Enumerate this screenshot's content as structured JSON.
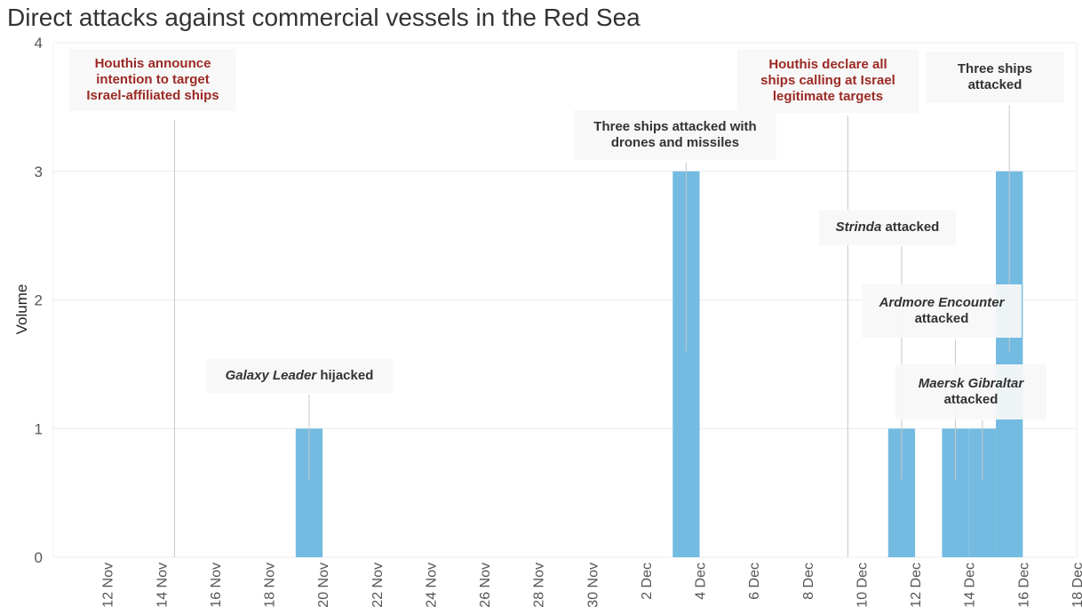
{
  "chart_data": {
    "type": "bar",
    "title": "Direct attacks against commercial vessels in the Red Sea",
    "ylabel": "Volume",
    "xlabel": "",
    "ylim": [
      0,
      4
    ],
    "yticks": [
      0,
      1,
      2,
      3,
      4
    ],
    "xlim": [
      "2023-11-10",
      "2023-12-18"
    ],
    "x_tick_labels": [
      "12 Nov",
      "14 Nov",
      "16 Nov",
      "18 Nov",
      "20 Nov",
      "22 Nov",
      "24 Nov",
      "26 Nov",
      "28 Nov",
      "30 Nov",
      "2 Dec",
      "4 Dec",
      "6 Dec",
      "8 Dec",
      "10 Dec",
      "12 Dec",
      "14 Dec",
      "16 Dec",
      "18 Dec"
    ],
    "bar_color": "#74bbe1",
    "bars": [
      {
        "date": "2023-11-19",
        "value": 1
      },
      {
        "date": "2023-12-03",
        "value": 3
      },
      {
        "date": "2023-12-11",
        "value": 1
      },
      {
        "date": "2023-12-13",
        "value": 1
      },
      {
        "date": "2023-12-14",
        "value": 1
      },
      {
        "date": "2023-12-15",
        "value": 3
      }
    ],
    "annotations": [
      {
        "lines": [
          "Houthis announce",
          "intention to target",
          "Israel-affiliated ships"
        ],
        "color": "#9b2a24",
        "date": "2023-11-14",
        "anchor_value": 0
      },
      {
        "lines": [
          "Galaxy Leader|hijacked"
        ],
        "color": "#333333",
        "date": "2023-11-19",
        "anchor_value": 0.6
      },
      {
        "lines": [
          "Three ships attacked with",
          "drones and missiles"
        ],
        "color": "#333333",
        "date": "2023-12-03",
        "anchor_value": 1.6
      },
      {
        "lines": [
          "Houthis declare all",
          "ships calling at Israel",
          "legitimate targets"
        ],
        "color": "#9b2a24",
        "date": "2023-12-09",
        "anchor_value": 0
      },
      {
        "lines": [
          "Strinda|attacked"
        ],
        "color": "#333333",
        "date": "2023-12-11",
        "anchor_value": 0.6
      },
      {
        "lines": [
          "Ardmore Encounter|",
          "attacked"
        ],
        "color": "#333333",
        "date": "2023-12-13",
        "anchor_value": 0.6
      },
      {
        "lines": [
          "Maersk Gibraltar|",
          "attacked"
        ],
        "color": "#333333",
        "date": "2023-12-14",
        "anchor_value": 0.6
      },
      {
        "lines": [
          "Three ships",
          "attacked"
        ],
        "color": "#333333",
        "date": "2023-12-15",
        "anchor_value": 1.6
      }
    ]
  }
}
